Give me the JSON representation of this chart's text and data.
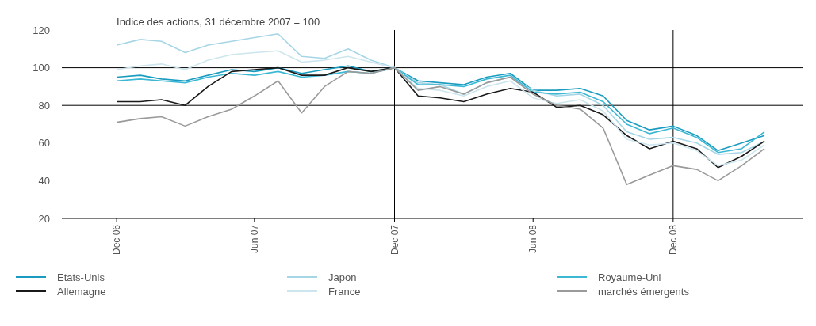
{
  "chart_data": {
    "type": "line",
    "title": "Indice des actions, 31 décembre 2007 = 100",
    "x": [
      "2006-12-31",
      "2007-01-31",
      "2007-02-28",
      "2007-03-31",
      "2007-04-30",
      "2007-05-31",
      "2007-06-30",
      "2007-07-31",
      "2007-08-31",
      "2007-09-30",
      "2007-10-31",
      "2007-11-30",
      "2007-12-31",
      "2008-01-31",
      "2008-02-29",
      "2008-03-31",
      "2008-04-30",
      "2008-05-31",
      "2008-06-30",
      "2008-07-31",
      "2008-08-31",
      "2008-09-30",
      "2008-10-31",
      "2008-11-30",
      "2008-12-31",
      "2009-01-31",
      "2009-02-28",
      "2009-03-31",
      "2009-04-30"
    ],
    "series": [
      {
        "name": "Etats-Unis",
        "color": "#1a9cc0",
        "values": [
          95,
          96,
          94,
          93,
          96,
          99,
          98,
          100,
          97,
          99,
          101,
          98,
          100,
          93,
          92,
          91,
          95,
          97,
          88,
          88,
          89,
          85,
          72,
          67,
          69,
          64,
          56,
          60,
          64
        ]
      },
      {
        "name": "Japon",
        "color": "#a6d6e6",
        "values": [
          112,
          115,
          114,
          108,
          112,
          114,
          116,
          118,
          106,
          105,
          110,
          104,
          100,
          92,
          91,
          86,
          92,
          95,
          88,
          85,
          86,
          80,
          66,
          62,
          63,
          60,
          54,
          55,
          61
        ]
      },
      {
        "name": "Royaume-Uni",
        "color": "#3db8d4",
        "values": [
          93,
          94,
          93,
          92,
          95,
          97,
          96,
          98,
          95,
          96,
          98,
          97,
          100,
          91,
          91,
          90,
          94,
          96,
          87,
          86,
          87,
          82,
          70,
          65,
          68,
          63,
          55,
          57,
          66
        ]
      },
      {
        "name": "Allemagne",
        "color": "#1a1a1a",
        "values": [
          82,
          82,
          83,
          80,
          90,
          98,
          99,
          100,
          96,
          96,
          100,
          98,
          100,
          85,
          84,
          82,
          86,
          89,
          87,
          79,
          80,
          75,
          64,
          57,
          61,
          57,
          47,
          53,
          61
        ]
      },
      {
        "name": "France",
        "color": "#cde6ee",
        "values": [
          99,
          101,
          102,
          99,
          104,
          107,
          108,
          109,
          103,
          104,
          106,
          103,
          100,
          89,
          88,
          85,
          90,
          93,
          84,
          81,
          83,
          77,
          62,
          59,
          60,
          56,
          48,
          51,
          59
        ]
      },
      {
        "name": "marchés émergents",
        "color": "#9a9a9a",
        "values": [
          71,
          73,
          74,
          69,
          74,
          78,
          85,
          93,
          76,
          90,
          98,
          97,
          100,
          88,
          90,
          86,
          92,
          95,
          86,
          80,
          78,
          68,
          38,
          43,
          48,
          46,
          40,
          48,
          57
        ]
      }
    ],
    "xlim": [
      "2006-10-20",
      "2009-06-20"
    ],
    "xticks": [
      {
        "value": "2006-12-31",
        "label": "Dec 06"
      },
      {
        "value": "2007-06-30",
        "label": "Jun 07"
      },
      {
        "value": "2007-12-31",
        "label": "Dec 07"
      },
      {
        "value": "2008-06-30",
        "label": "Jun 08"
      },
      {
        "value": "2008-12-31",
        "label": "Dec 08"
      }
    ],
    "ylim": [
      20,
      120
    ],
    "yticks": [
      20,
      40,
      60,
      80,
      100,
      120
    ],
    "ref_lines": [
      {
        "axis": "y",
        "value": 100,
        "color": "#000000"
      },
      {
        "axis": "y",
        "value": 80,
        "color": "#000000"
      },
      {
        "axis": "x",
        "value": "2007-12-31",
        "color": "#000000"
      },
      {
        "axis": "x",
        "value": "2008-12-31",
        "color": "#000000"
      }
    ],
    "legend": "bottom"
  }
}
